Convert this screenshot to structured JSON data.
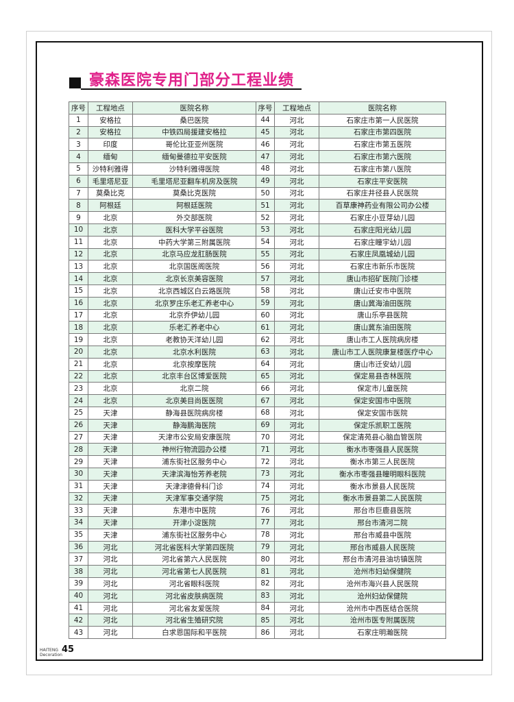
{
  "title": "豪森医院专用门部分工程业绩",
  "headers": [
    "序号",
    "工程地点",
    "医院名称"
  ],
  "footer": {
    "brand_line1": "HAITENG",
    "brand_line2": "Decoration",
    "page_number": "45"
  },
  "colors": {
    "title": "#e0218a",
    "row_alt": "#e4f5ea"
  },
  "left": [
    [
      "1",
      "安格拉",
      "桑巴医院"
    ],
    [
      "2",
      "安格拉",
      "中铁四局援建安格拉"
    ],
    [
      "3",
      "印度",
      "哥伦比亚亚州医院"
    ],
    [
      "4",
      "缅甸",
      "缅甸曼德拉平安医院"
    ],
    [
      "5",
      "沙特利雅得",
      "沙特利雅得医院"
    ],
    [
      "6",
      "毛里塔尼亚",
      "毛里塔尼亚翻车机房及医院"
    ],
    [
      "7",
      "莫桑比克",
      "莫桑比克医院"
    ],
    [
      "8",
      "阿根廷",
      "阿根廷医院"
    ],
    [
      "9",
      "北京",
      "外交部医院"
    ],
    [
      "10",
      "北京",
      "医科大学平谷医院"
    ],
    [
      "11",
      "北京",
      "中药大学第三附属医院"
    ],
    [
      "12",
      "北京",
      "北京马应龙肛肠医院"
    ],
    [
      "13",
      "北京",
      "北京国医阁医院"
    ],
    [
      "14",
      "北京",
      "北京长京美容医院"
    ],
    [
      "15",
      "北京",
      "北京西城区白云路医院"
    ],
    [
      "16",
      "北京",
      "北京罗庄乐老汇养老中心"
    ],
    [
      "17",
      "北京",
      "北京乔伊幼儿园"
    ],
    [
      "18",
      "北京",
      "乐老汇养老中心"
    ],
    [
      "19",
      "北京",
      "老教协天洋幼儿园"
    ],
    [
      "20",
      "北京",
      "北京水利医院"
    ],
    [
      "21",
      "北京",
      "北京按摩医院"
    ],
    [
      "22",
      "北京",
      "北京丰台区博爱医院"
    ],
    [
      "23",
      "北京",
      "北京二院"
    ],
    [
      "24",
      "北京",
      "北京美目尚医医院"
    ],
    [
      "25",
      "天津",
      "静海县医院病房楼"
    ],
    [
      "26",
      "天津",
      "静海鹏海医院"
    ],
    [
      "27",
      "天津",
      "天津市公安局安康医院"
    ],
    [
      "28",
      "天津",
      "神州行物流园办公楼"
    ],
    [
      "29",
      "天津",
      "浦东街社区服务中心"
    ],
    [
      "30",
      "天津",
      "天津滨海怡芳养老院"
    ],
    [
      "31",
      "天津",
      "天津津德骨科门诊"
    ],
    [
      "32",
      "天津",
      "天津军事交通学院"
    ],
    [
      "33",
      "天津",
      "东港市中医院"
    ],
    [
      "34",
      "天津",
      "开津小淀医院"
    ],
    [
      "35",
      "天津",
      "浦东街社区服务中心"
    ],
    [
      "36",
      "河北",
      "河北省医科大学第四医院"
    ],
    [
      "37",
      "河北",
      "河北省第六人民医院"
    ],
    [
      "38",
      "河北",
      "河北省第七人民医院"
    ],
    [
      "39",
      "河北",
      "河北省眼科医院"
    ],
    [
      "40",
      "河北",
      "河北省皮肤病医院"
    ],
    [
      "41",
      "河北",
      "河北省友爱医院"
    ],
    [
      "42",
      "河北",
      "河北省生殖研究院"
    ],
    [
      "43",
      "河北",
      "白求恩国际和平医院"
    ]
  ],
  "right": [
    [
      "44",
      "河北",
      "石家庄市第一人民医院"
    ],
    [
      "45",
      "河北",
      "石家庄市第四医院"
    ],
    [
      "46",
      "河北",
      "石家庄市第五医院"
    ],
    [
      "47",
      "河北",
      "石家庄市第六医院"
    ],
    [
      "48",
      "河北",
      "石家庄市第八医院"
    ],
    [
      "49",
      "河北",
      "石家庄平安医院"
    ],
    [
      "50",
      "河北",
      "石家庄井径县人民医院"
    ],
    [
      "51",
      "河北",
      "百草康神药业有限公司办公楼"
    ],
    [
      "52",
      "河北",
      "石家庄小豆芽幼儿园"
    ],
    [
      "53",
      "河北",
      "石家庄阳光幼儿园"
    ],
    [
      "54",
      "河北",
      "石家庄瞳宇幼儿园"
    ],
    [
      "55",
      "河北",
      "石家庄凤凰城幼儿园"
    ],
    [
      "56",
      "河北",
      "石家庄市新乐市医院"
    ],
    [
      "57",
      "河北",
      "唐山市招矿医院门诊楼"
    ],
    [
      "58",
      "河北",
      "唐山迁安市中医院"
    ],
    [
      "59",
      "河北",
      "唐山冀海油田医院"
    ],
    [
      "60",
      "河北",
      "唐山乐亭县医院"
    ],
    [
      "61",
      "河北",
      "唐山冀东油田医院"
    ],
    [
      "62",
      "河北",
      "唐山市工人医院病房楼"
    ],
    [
      "63",
      "河北",
      "唐山市工人医院康复楼医疗中心"
    ],
    [
      "64",
      "河北",
      "唐山市迁安幼儿园"
    ],
    [
      "65",
      "河北",
      "保定易县杏林医院"
    ],
    [
      "66",
      "河北",
      "保定市儿童医院"
    ],
    [
      "67",
      "河北",
      "保定安国市中医院"
    ],
    [
      "68",
      "河北",
      "保定安国市医院"
    ],
    [
      "69",
      "河北",
      "保定乐凯职工医院"
    ],
    [
      "70",
      "河北",
      "保定清苑县心脑血管医院"
    ],
    [
      "71",
      "河北",
      "衡水市枣强县人民医院"
    ],
    [
      "72",
      "河北",
      "衡水市第三人民医院"
    ],
    [
      "73",
      "河北",
      "衡水市枣强县瞳明眼科医院"
    ],
    [
      "74",
      "河北",
      "衡水市景县人民医院"
    ],
    [
      "75",
      "河北",
      "衡水市景县第二人民医院"
    ],
    [
      "76",
      "河北",
      "邢台市巨鹿县医院"
    ],
    [
      "77",
      "河北",
      "邢台市清河二院"
    ],
    [
      "78",
      "河北",
      "邢台市威县中医院"
    ],
    [
      "79",
      "河北",
      "邢台市威县人民医院"
    ],
    [
      "80",
      "河北",
      "邢台市清河县油坊镇医院"
    ],
    [
      "81",
      "河北",
      "沧州市妇幼保健院"
    ],
    [
      "82",
      "河北",
      "沧州市海兴县人民医院"
    ],
    [
      "83",
      "河北",
      "沧州妇幼保健院"
    ],
    [
      "84",
      "河北",
      "沧州市中西医结合医院"
    ],
    [
      "85",
      "河北",
      "沧州市医专附属医院"
    ],
    [
      "86",
      "河北",
      "石家庄明瀚医院"
    ]
  ]
}
